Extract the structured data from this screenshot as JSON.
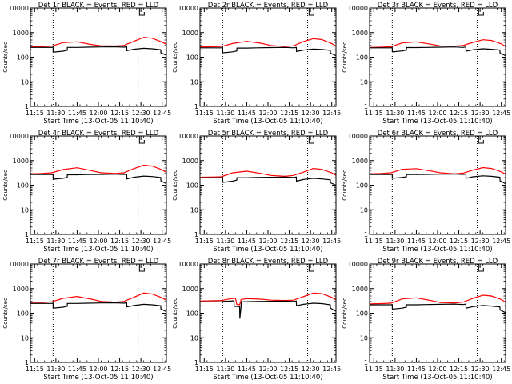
{
  "chart_data": {
    "type": "line",
    "grid_rows": 3,
    "grid_cols": 3,
    "xlabel": "Start Time (13-Oct-05 11:10:40)",
    "ylabel": "Counts/sec",
    "yscale": "log",
    "ylim": [
      1,
      10000
    ],
    "yticks": [
      1,
      10,
      100,
      1000,
      10000
    ],
    "ytick_labels": [
      "1",
      "10",
      "100",
      "1000",
      "10000"
    ],
    "xlim_minutes": [
      12,
      108
    ],
    "xticks_minutes": [
      15,
      30,
      45,
      60,
      75,
      90,
      105
    ],
    "xtick_labels": [
      "11:15",
      "11:30",
      "11:45",
      "12:00",
      "12:15",
      "12:30",
      "12:45"
    ],
    "vlines_minutes": [
      28,
      88
    ],
    "marker_minutes": 89,
    "series_colors": {
      "events": "#000000",
      "lld": "#ff0000"
    },
    "panels": [
      {
        "title": "Det 1r BLACK = Events, RED = LLD",
        "series": [
          {
            "name": "LLD",
            "x": [
              12,
              20,
              27,
              35,
              45,
              55,
              62,
              72,
              78,
              85,
              92,
              98,
              105,
              108
            ],
            "values": [
              260,
              265,
              280,
              390,
              420,
              330,
              290,
              285,
              300,
              440,
              640,
              590,
              410,
              330
            ]
          },
          {
            "name": "Events",
            "x": [
              12,
              27,
              28,
              28.1,
              35,
              38,
              38.1,
              45,
              52,
              62,
              72,
              78,
              80,
              80.1,
              85,
              92,
              98,
              104,
              104.1,
              108
            ],
            "values": [
              250,
              250,
              255,
              160,
              175,
              190,
              250,
              250,
              255,
              260,
              265,
              255,
              265,
              185,
              210,
              230,
              220,
              200,
              150,
              120
            ]
          }
        ]
      },
      {
        "title": "Det 2r BLACK = Events, RED = LLD",
        "series": [
          {
            "name": "LLD",
            "x": [
              12,
              20,
              27,
              35,
              45,
              55,
              62,
              72,
              78,
              85,
              92,
              98,
              105,
              108
            ],
            "values": [
              260,
              265,
              270,
              360,
              440,
              370,
              300,
              270,
              290,
              430,
              570,
              520,
              360,
              280
            ]
          },
          {
            "name": "Events",
            "x": [
              12,
              27,
              28,
              28.1,
              35,
              38,
              38.1,
              45,
              52,
              62,
              72,
              78,
              80,
              80.1,
              85,
              92,
              98,
              104,
              104.1,
              108
            ],
            "values": [
              240,
              240,
              245,
              150,
              165,
              180,
              235,
              235,
              240,
              245,
              250,
              240,
              250,
              170,
              195,
              215,
              205,
              190,
              145,
              115
            ]
          }
        ]
      },
      {
        "title": "Det 3r BLACK = Events, RED = LLD",
        "series": [
          {
            "name": "LLD",
            "x": [
              12,
              20,
              27,
              35,
              45,
              55,
              62,
              72,
              78,
              85,
              92,
              98,
              105,
              108
            ],
            "values": [
              250,
              255,
              265,
              380,
              420,
              340,
              285,
              280,
              300,
              400,
              510,
              480,
              350,
              270
            ]
          },
          {
            "name": "Events",
            "x": [
              12,
              27,
              28,
              28.1,
              35,
              38,
              38.1,
              45,
              52,
              62,
              72,
              78,
              80,
              80.1,
              85,
              92,
              98,
              104,
              104.1,
              108
            ],
            "values": [
              240,
              240,
              245,
              165,
              180,
              195,
              245,
              245,
              250,
              255,
              260,
              250,
              260,
              175,
              200,
              220,
              210,
              195,
              145,
              115
            ]
          }
        ]
      },
      {
        "title": "Det 4r BLACK = Events, RED = LLD",
        "series": [
          {
            "name": "LLD",
            "x": [
              12,
              20,
              27,
              35,
              45,
              55,
              62,
              72,
              78,
              85,
              92,
              98,
              105,
              108
            ],
            "values": [
              290,
              300,
              320,
              430,
              510,
              390,
              320,
              300,
              320,
              470,
              650,
              600,
              420,
              330
            ]
          },
          {
            "name": "Events",
            "x": [
              12,
              27,
              28,
              28.1,
              35,
              38,
              38.1,
              45,
              52,
              62,
              72,
              78,
              80,
              80.1,
              85,
              92,
              98,
              104,
              104.1,
              108
            ],
            "values": [
              270,
              270,
              275,
              175,
              190,
              205,
              265,
              265,
              270,
              275,
              280,
              270,
              280,
              180,
              210,
              235,
              225,
              205,
              150,
              115
            ]
          }
        ]
      },
      {
        "title": "Det 5r BLACK = Events, RED = LLD",
        "series": [
          {
            "name": "LLD",
            "x": [
              12,
              20,
              27,
              35,
              45,
              55,
              62,
              72,
              78,
              85,
              92,
              98,
              105,
              108
            ],
            "values": [
              210,
              215,
              220,
              320,
              370,
              300,
              250,
              230,
              250,
              340,
              480,
              440,
              320,
              250
            ]
          },
          {
            "name": "Events",
            "x": [
              12,
              27,
              28,
              28.1,
              35,
              38,
              38.1,
              45,
              52,
              62,
              72,
              78,
              80,
              80.1,
              85,
              92,
              98,
              104,
              104.1,
              108
            ],
            "values": [
              200,
              200,
              205,
              130,
              145,
              160,
              200,
              200,
              205,
              210,
              215,
              205,
              215,
              145,
              170,
              190,
              180,
              165,
              125,
              100
            ]
          }
        ]
      },
      {
        "title": "Det 6r BLACK = Events, RED = LLD",
        "series": [
          {
            "name": "LLD",
            "x": [
              12,
              20,
              27,
              35,
              45,
              55,
              62,
              72,
              78,
              85,
              92,
              98,
              105,
              108
            ],
            "values": [
              290,
              300,
              320,
              440,
              470,
              380,
              320,
              290,
              310,
              410,
              520,
              480,
              350,
              280
            ]
          },
          {
            "name": "Events",
            "x": [
              12,
              27,
              28,
              28.1,
              35,
              38,
              38.1,
              45,
              52,
              62,
              72,
              78,
              80,
              80.1,
              85,
              92,
              98,
              104,
              104.1,
              108
            ],
            "values": [
              270,
              270,
              275,
              190,
              205,
              220,
              270,
              270,
              275,
              280,
              285,
              275,
              285,
              190,
              220,
              240,
              230,
              210,
              150,
              115
            ]
          }
        ]
      },
      {
        "title": "Det 7r BLACK = Events, RED = LLD",
        "series": [
          {
            "name": "LLD",
            "x": [
              12,
              20,
              27,
              35,
              45,
              55,
              62,
              72,
              78,
              85,
              92,
              98,
              105,
              108
            ],
            "values": [
              270,
              275,
              290,
              400,
              480,
              370,
              300,
              280,
              300,
              440,
              660,
              600,
              420,
              330
            ]
          },
          {
            "name": "Events",
            "x": [
              12,
              27,
              28,
              28.1,
              35,
              38,
              38.1,
              45,
              52,
              62,
              72,
              78,
              80,
              80.1,
              85,
              92,
              98,
              104,
              104.1,
              108
            ],
            "values": [
              250,
              250,
              255,
              160,
              175,
              190,
              250,
              250,
              255,
              260,
              265,
              255,
              265,
              180,
              205,
              230,
              220,
              200,
              150,
              115
            ]
          }
        ]
      },
      {
        "title": "Det 8r BLACK = Events, RED = LLD",
        "series": [
          {
            "name": "LLD",
            "x": [
              12,
              20,
              27,
              33,
              37,
              38,
              40,
              41,
              45,
              55,
              62,
              72,
              78,
              85,
              92,
              98,
              105,
              108
            ],
            "values": [
              310,
              320,
              330,
              380,
              410,
              230,
              220,
              360,
              390,
              370,
              340,
              330,
              340,
              470,
              660,
              620,
              440,
              350
            ]
          },
          {
            "name": "Events",
            "x": [
              12,
              27,
              28,
              28.1,
              33,
              36,
              36.1,
              40,
              40.1,
              41,
              41.1,
              45,
              52,
              62,
              72,
              78,
              80,
              80.1,
              85,
              92,
              98,
              104,
              104.1,
              108
            ],
            "values": [
              290,
              290,
              295,
              300,
              310,
              320,
              190,
              185,
              60,
              190,
              290,
              295,
              300,
              305,
              310,
              300,
              310,
              200,
              230,
              255,
              245,
              220,
              160,
              120
            ]
          }
        ]
      },
      {
        "title": "Det 9r BLACK = Events, RED = LLD",
        "series": [
          {
            "name": "LLD",
            "x": [
              12,
              20,
              27,
              35,
              45,
              55,
              62,
              72,
              78,
              85,
              92,
              98,
              105,
              108
            ],
            "values": [
              240,
              245,
              255,
              380,
              420,
              330,
              270,
              260,
              280,
              400,
              540,
              500,
              360,
              280
            ]
          },
          {
            "name": "Events",
            "x": [
              12,
              27,
              28,
              28.1,
              35,
              38,
              38.1,
              45,
              52,
              62,
              72,
              78,
              80,
              80.1,
              85,
              92,
              98,
              104,
              104.1,
              108
            ],
            "values": [
              220,
              220,
              225,
              145,
              160,
              175,
              220,
              220,
              225,
              230,
              235,
              225,
              235,
              160,
              185,
              205,
              195,
              180,
              135,
              105
            ]
          }
        ]
      }
    ]
  }
}
